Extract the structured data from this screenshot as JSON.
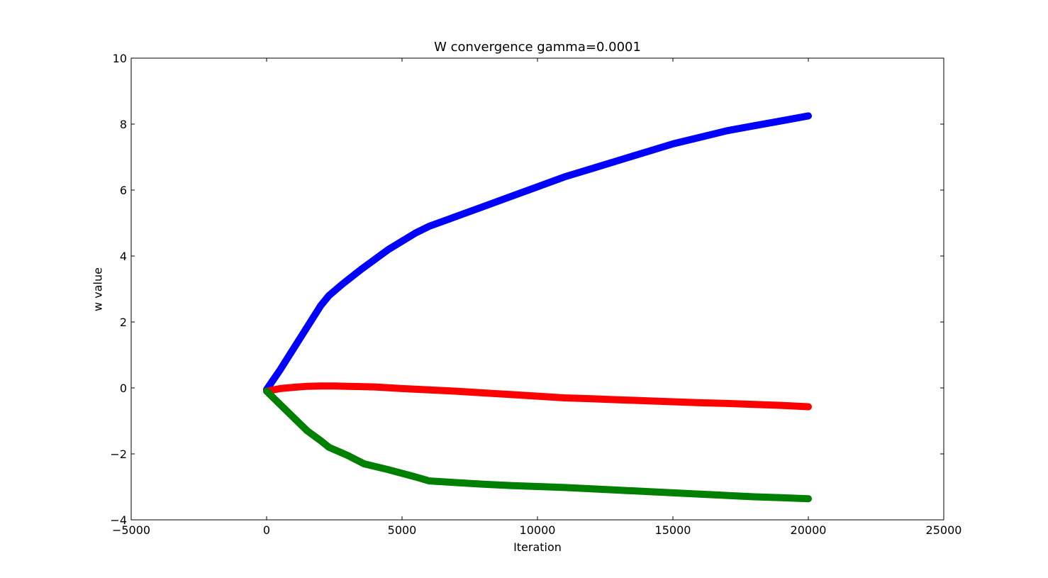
{
  "chart_data": {
    "type": "line",
    "title": "W convergence gamma=0.0001",
    "xlabel": "Iteration",
    "ylabel": "w value",
    "xlim": [
      -5000,
      25000
    ],
    "ylim": [
      -4,
      10
    ],
    "xticks": [
      -5000,
      0,
      5000,
      10000,
      15000,
      20000,
      25000
    ],
    "xtick_labels": [
      "−5000",
      "0",
      "5000",
      "10000",
      "15000",
      "20000",
      "25000"
    ],
    "yticks": [
      -4,
      -2,
      0,
      2,
      4,
      6,
      8,
      10
    ],
    "ytick_labels": [
      "−4",
      "−2",
      "0",
      "2",
      "4",
      "6",
      "8",
      "10"
    ],
    "grid": false,
    "legend": null,
    "series": [
      {
        "color": "#0000ff",
        "x": [
          0,
          500,
          1000,
          1500,
          2000,
          2300,
          2800,
          3500,
          4500,
          5500,
          6000,
          7000,
          8000,
          9000,
          10000,
          11000,
          12000,
          13000,
          14000,
          15000,
          16000,
          17000,
          18000,
          19000,
          20000
        ],
        "y": [
          -0.05,
          0.55,
          1.2,
          1.85,
          2.5,
          2.8,
          3.15,
          3.6,
          4.2,
          4.7,
          4.9,
          5.2,
          5.5,
          5.8,
          6.1,
          6.4,
          6.65,
          6.9,
          7.15,
          7.4,
          7.6,
          7.8,
          7.95,
          8.1,
          8.25
        ]
      },
      {
        "color": "#ff0000",
        "x": [
          0,
          500,
          1000,
          1500,
          2000,
          2500,
          3000,
          4000,
          5000,
          6000,
          7000,
          8000,
          9000,
          10000,
          11000,
          12000,
          13000,
          14000,
          15000,
          16000,
          17000,
          18000,
          19000,
          20000
        ],
        "y": [
          -0.1,
          -0.02,
          0.02,
          0.05,
          0.06,
          0.06,
          0.05,
          0.03,
          -0.02,
          -0.06,
          -0.1,
          -0.15,
          -0.2,
          -0.25,
          -0.3,
          -0.33,
          -0.36,
          -0.39,
          -0.42,
          -0.45,
          -0.47,
          -0.5,
          -0.53,
          -0.57
        ]
      },
      {
        "color": "#008000",
        "x": [
          0,
          500,
          1000,
          1500,
          2000,
          2300,
          3000,
          3600,
          4500,
          5500,
          6000,
          7000,
          8000,
          9000,
          10000,
          11000,
          12000,
          13000,
          14000,
          15000,
          16000,
          17000,
          18000,
          19000,
          20000
        ],
        "y": [
          -0.1,
          -0.5,
          -0.9,
          -1.3,
          -1.6,
          -1.8,
          -2.05,
          -2.3,
          -2.48,
          -2.7,
          -2.82,
          -2.87,
          -2.92,
          -2.96,
          -2.99,
          -3.02,
          -3.06,
          -3.1,
          -3.14,
          -3.18,
          -3.22,
          -3.26,
          -3.3,
          -3.33,
          -3.36
        ]
      }
    ]
  }
}
